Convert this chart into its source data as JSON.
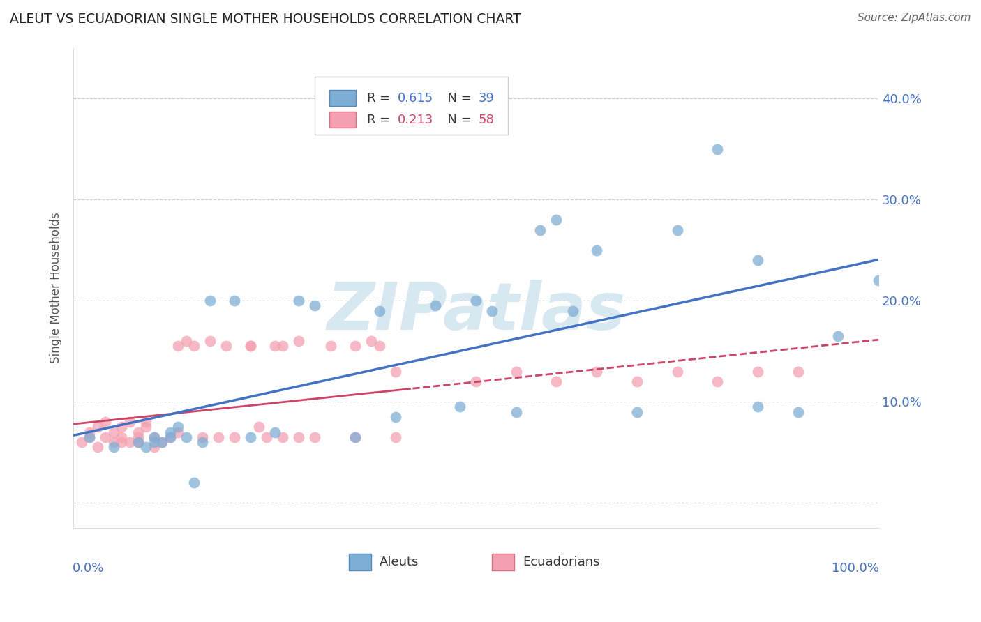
{
  "title": "ALEUT VS ECUADORIAN SINGLE MOTHER HOUSEHOLDS CORRELATION CHART",
  "source": "Source: ZipAtlas.com",
  "ylabel": "Single Mother Households",
  "xlim": [
    0.0,
    1.0
  ],
  "ylim": [
    -0.025,
    0.45
  ],
  "ytick_positions": [
    0.0,
    0.1,
    0.2,
    0.3,
    0.4
  ],
  "ytick_labels": [
    "",
    "10.0%",
    "20.0%",
    "30.0%",
    "40.0%"
  ],
  "grid_color": "#cccccc",
  "background_color": "#ffffff",
  "aleut_color": "#7faed4",
  "aleut_edge_color": "#5588bb",
  "ecuadorian_color": "#f4a0b0",
  "ecuadorian_edge_color": "#d07080",
  "aleut_R": "0.615",
  "aleut_N": "39",
  "ecuadorian_R": "0.213",
  "ecuadorian_N": "58",
  "aleut_line_color": "#4472c4",
  "ecuadorian_line_color": "#cc4466",
  "text_color_blue": "#4472c4",
  "text_color_pink": "#cc4466",
  "watermark_color": "#d8e8f0",
  "aleut_x": [
    0.02,
    0.05,
    0.08,
    0.09,
    0.1,
    0.1,
    0.11,
    0.12,
    0.12,
    0.13,
    0.14,
    0.15,
    0.16,
    0.17,
    0.22,
    0.3,
    0.35,
    0.38,
    0.4,
    0.45,
    0.5,
    0.52,
    0.55,
    0.6,
    0.62,
    0.65,
    0.7,
    0.75,
    0.8,
    0.85,
    0.85,
    0.9,
    0.95,
    1.0,
    0.48,
    0.58,
    0.28,
    0.25,
    0.2
  ],
  "aleut_y": [
    0.065,
    0.055,
    0.06,
    0.055,
    0.065,
    0.06,
    0.06,
    0.07,
    0.065,
    0.075,
    0.065,
    0.02,
    0.06,
    0.2,
    0.065,
    0.195,
    0.065,
    0.19,
    0.085,
    0.195,
    0.2,
    0.19,
    0.09,
    0.28,
    0.19,
    0.25,
    0.09,
    0.27,
    0.35,
    0.24,
    0.095,
    0.09,
    0.165,
    0.22,
    0.095,
    0.27,
    0.2,
    0.07,
    0.2
  ],
  "ecuadorian_x": [
    0.01,
    0.02,
    0.02,
    0.03,
    0.03,
    0.04,
    0.04,
    0.05,
    0.05,
    0.06,
    0.06,
    0.06,
    0.07,
    0.07,
    0.08,
    0.08,
    0.08,
    0.09,
    0.09,
    0.1,
    0.1,
    0.11,
    0.12,
    0.13,
    0.13,
    0.14,
    0.15,
    0.16,
    0.17,
    0.18,
    0.19,
    0.2,
    0.22,
    0.23,
    0.25,
    0.26,
    0.28,
    0.3,
    0.32,
    0.35,
    0.37,
    0.38,
    0.4,
    0.22,
    0.24,
    0.26,
    0.28,
    0.35,
    0.4,
    0.5,
    0.55,
    0.6,
    0.65,
    0.7,
    0.75,
    0.8,
    0.85,
    0.9
  ],
  "ecuadorian_y": [
    0.06,
    0.065,
    0.07,
    0.055,
    0.075,
    0.065,
    0.08,
    0.06,
    0.07,
    0.065,
    0.06,
    0.075,
    0.06,
    0.08,
    0.065,
    0.06,
    0.07,
    0.075,
    0.08,
    0.065,
    0.055,
    0.06,
    0.065,
    0.07,
    0.155,
    0.16,
    0.155,
    0.065,
    0.16,
    0.065,
    0.155,
    0.065,
    0.155,
    0.075,
    0.155,
    0.065,
    0.16,
    0.065,
    0.155,
    0.065,
    0.16,
    0.155,
    0.065,
    0.155,
    0.065,
    0.155,
    0.065,
    0.155,
    0.13,
    0.12,
    0.13,
    0.12,
    0.13,
    0.12,
    0.13,
    0.12,
    0.13,
    0.13
  ]
}
